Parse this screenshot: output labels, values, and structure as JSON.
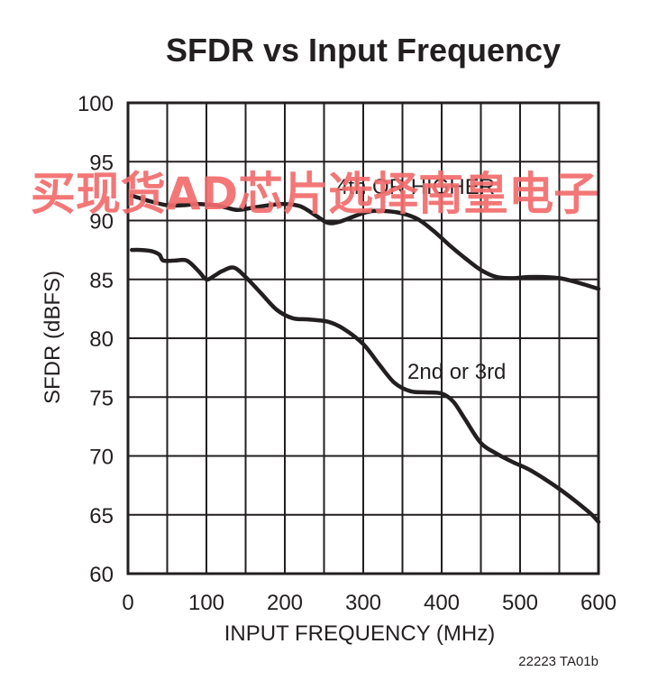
{
  "chart_data": {
    "type": "line",
    "title": "SFDR vs Input Frequency",
    "xlabel": "INPUT FREQUENCY (MHz)",
    "ylabel": "SFDR (dBFS)",
    "xlim": [
      0,
      600
    ],
    "ylim": [
      60,
      100
    ],
    "xticks": [
      0,
      100,
      200,
      300,
      400,
      500,
      600
    ],
    "yticks": [
      60,
      65,
      70,
      75,
      80,
      85,
      90,
      95,
      100
    ],
    "grid": true,
    "series": [
      {
        "name": "4th OR HIGHER",
        "x": [
          5,
          15,
          30,
          50,
          70,
          90,
          110,
          125,
          140,
          160,
          180,
          200,
          220,
          240,
          255,
          270,
          290,
          310,
          330,
          350,
          370,
          390,
          410,
          430,
          450,
          470,
          490,
          510,
          530,
          550,
          570,
          590,
          600
        ],
        "y": [
          92.1,
          91.9,
          91.6,
          91.3,
          91.3,
          91.4,
          91.3,
          91.1,
          90.9,
          91.1,
          91.3,
          91.4,
          91.2,
          90.4,
          89.8,
          89.9,
          90.4,
          90.8,
          90.8,
          90.6,
          90.1,
          89.1,
          87.9,
          86.8,
          85.8,
          85.2,
          85.1,
          85.2,
          85.2,
          85.1,
          84.8,
          84.4,
          84.2
        ]
      },
      {
        "name": "2nd or 3rd",
        "x": [
          5,
          15,
          30,
          40,
          45,
          60,
          75,
          90,
          100,
          110,
          120,
          135,
          150,
          170,
          190,
          210,
          230,
          255,
          275,
          300,
          320,
          340,
          360,
          380,
          400,
          415,
          430,
          450,
          470,
          490,
          510,
          530,
          550,
          570,
          590,
          600
        ],
        "y": [
          87.5,
          87.5,
          87.4,
          87.1,
          86.6,
          86.6,
          86.6,
          85.7,
          85.0,
          85.3,
          85.7,
          86.0,
          85.2,
          83.8,
          82.4,
          81.7,
          81.6,
          81.4,
          80.8,
          79.5,
          77.8,
          76.2,
          75.5,
          75.4,
          75.3,
          74.6,
          73.1,
          71.1,
          70.2,
          69.5,
          68.9,
          68.1,
          67.2,
          66.2,
          65.1,
          64.4
        ]
      }
    ],
    "annotations": [
      {
        "text": "4th OR HIGHER",
        "series": 0
      },
      {
        "text": "2nd or 3rd",
        "series": 1
      }
    ],
    "figure_code": "22223 TA01b",
    "line_color": "#231f20"
  },
  "watermark": {
    "text": "买现货AD芯片选择南皇电子",
    "color": "#f26b6b"
  }
}
